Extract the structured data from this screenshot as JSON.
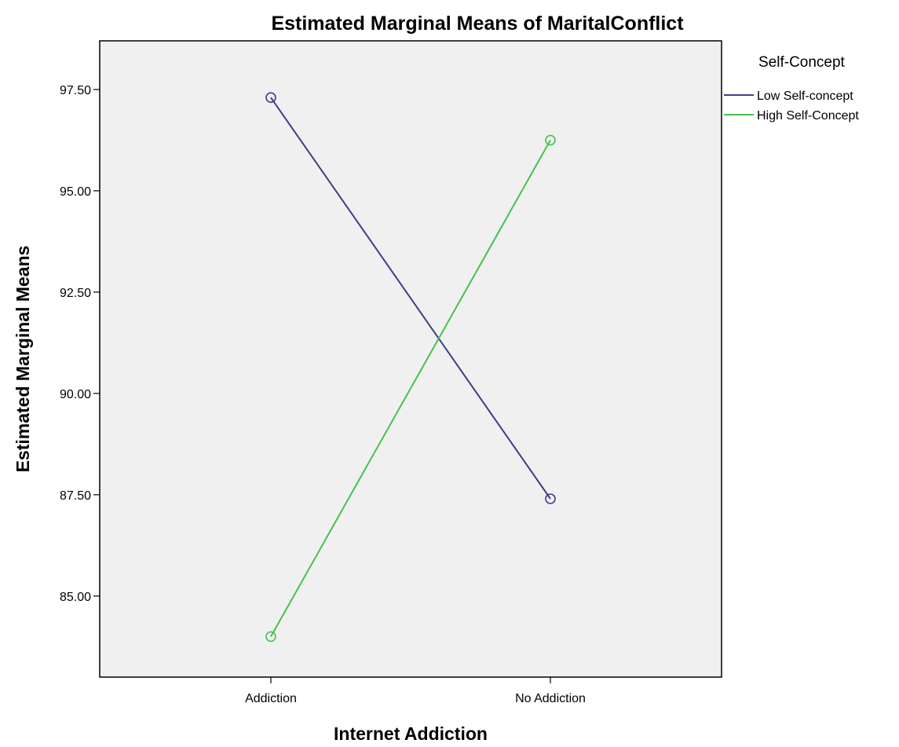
{
  "chart_data": {
    "type": "line",
    "title": "Estimated Marginal Means of MaritalConflict",
    "xlabel": "Internet Addiction",
    "ylabel": "Estimated Marginal Means",
    "categories": [
      "Addiction",
      "No Addiction"
    ],
    "y_ticks": [
      "85.00",
      "87.50",
      "90.00",
      "92.50",
      "95.00",
      "97.50"
    ],
    "ylim": [
      83.0,
      98.7
    ],
    "grid": false,
    "plot_background": "#f0f0f0",
    "marker": "open-circle",
    "legend": {
      "title": "Self-Concept",
      "placement": "right"
    },
    "series": [
      {
        "name": "Low Self-concept",
        "color": "#3e3e8a",
        "values": [
          97.3,
          87.4
        ]
      },
      {
        "name": "High Self-Concept",
        "color": "#44c24a",
        "values": [
          84.0,
          96.25
        ]
      }
    ]
  }
}
